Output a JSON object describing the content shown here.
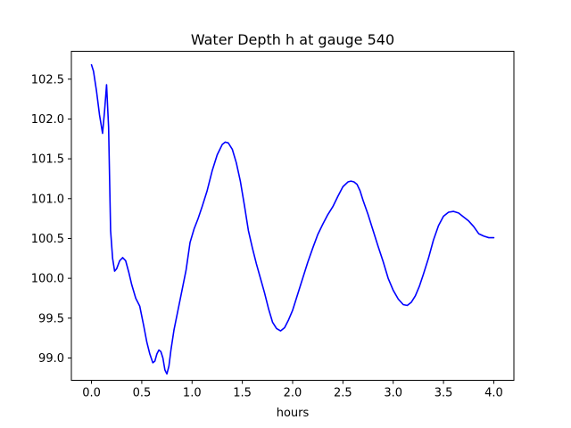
{
  "chart_data": {
    "type": "line",
    "title": "Water Depth h at gauge 540",
    "xlabel": "hours",
    "ylabel": "",
    "xlim": [
      -0.2,
      4.2
    ],
    "ylim": [
      98.72,
      102.85
    ],
    "xticks": [
      0.0,
      0.5,
      1.0,
      1.5,
      2.0,
      2.5,
      3.0,
      3.5,
      4.0
    ],
    "xtick_labels": [
      "0.0",
      "0.5",
      "1.0",
      "1.5",
      "2.0",
      "2.5",
      "3.0",
      "3.5",
      "4.0"
    ],
    "yticks": [
      99.0,
      99.5,
      100.0,
      100.5,
      101.0,
      101.5,
      102.0,
      102.5
    ],
    "ytick_labels": [
      "99.0",
      "99.5",
      "100.0",
      "100.5",
      "101.0",
      "101.5",
      "102.0",
      "102.5"
    ],
    "grid": false,
    "legend": null,
    "series": [
      {
        "color": "#0000ff",
        "x": [
          0.0,
          0.02,
          0.05,
          0.08,
          0.11,
          0.13,
          0.15,
          0.17,
          0.19,
          0.21,
          0.23,
          0.25,
          0.28,
          0.31,
          0.34,
          0.37,
          0.4,
          0.44,
          0.48,
          0.52,
          0.55,
          0.58,
          0.61,
          0.63,
          0.65,
          0.67,
          0.69,
          0.71,
          0.73,
          0.75,
          0.77,
          0.79,
          0.82,
          0.86,
          0.9,
          0.94,
          0.98,
          1.02,
          1.06,
          1.1,
          1.15,
          1.2,
          1.25,
          1.3,
          1.33,
          1.36,
          1.4,
          1.44,
          1.48,
          1.52,
          1.56,
          1.6,
          1.64,
          1.68,
          1.72,
          1.76,
          1.8,
          1.84,
          1.88,
          1.92,
          1.96,
          2.0,
          2.05,
          2.1,
          2.15,
          2.2,
          2.25,
          2.3,
          2.35,
          2.4,
          2.45,
          2.5,
          2.55,
          2.58,
          2.61,
          2.64,
          2.67,
          2.7,
          2.75,
          2.8,
          2.85,
          2.9,
          2.95,
          3.0,
          3.05,
          3.1,
          3.14,
          3.18,
          3.22,
          3.26,
          3.3,
          3.35,
          3.4,
          3.45,
          3.5,
          3.55,
          3.6,
          3.65,
          3.7,
          3.75,
          3.8,
          3.85,
          3.9,
          3.95,
          4.0
        ],
        "y": [
          102.68,
          102.6,
          102.35,
          102.05,
          101.82,
          102.1,
          102.43,
          101.9,
          100.6,
          100.25,
          100.09,
          100.12,
          100.22,
          100.26,
          100.22,
          100.08,
          99.92,
          99.75,
          99.65,
          99.4,
          99.2,
          99.05,
          98.94,
          98.96,
          99.05,
          99.1,
          99.08,
          99.0,
          98.85,
          98.8,
          98.9,
          99.1,
          99.35,
          99.6,
          99.85,
          100.1,
          100.45,
          100.62,
          100.75,
          100.9,
          101.1,
          101.35,
          101.55,
          101.68,
          101.71,
          101.7,
          101.62,
          101.45,
          101.22,
          100.92,
          100.6,
          100.38,
          100.18,
          100.0,
          99.82,
          99.62,
          99.45,
          99.37,
          99.34,
          99.38,
          99.48,
          99.6,
          99.8,
          100.0,
          100.2,
          100.38,
          100.55,
          100.68,
          100.8,
          100.9,
          101.03,
          101.15,
          101.21,
          101.22,
          101.21,
          101.18,
          101.1,
          100.98,
          100.8,
          100.6,
          100.4,
          100.21,
          100.0,
          99.85,
          99.74,
          99.67,
          99.66,
          99.7,
          99.78,
          99.9,
          100.05,
          100.25,
          100.48,
          100.66,
          100.78,
          100.83,
          100.84,
          100.82,
          100.77,
          100.72,
          100.65,
          100.56,
          100.53,
          100.51,
          100.51
        ]
      }
    ]
  }
}
